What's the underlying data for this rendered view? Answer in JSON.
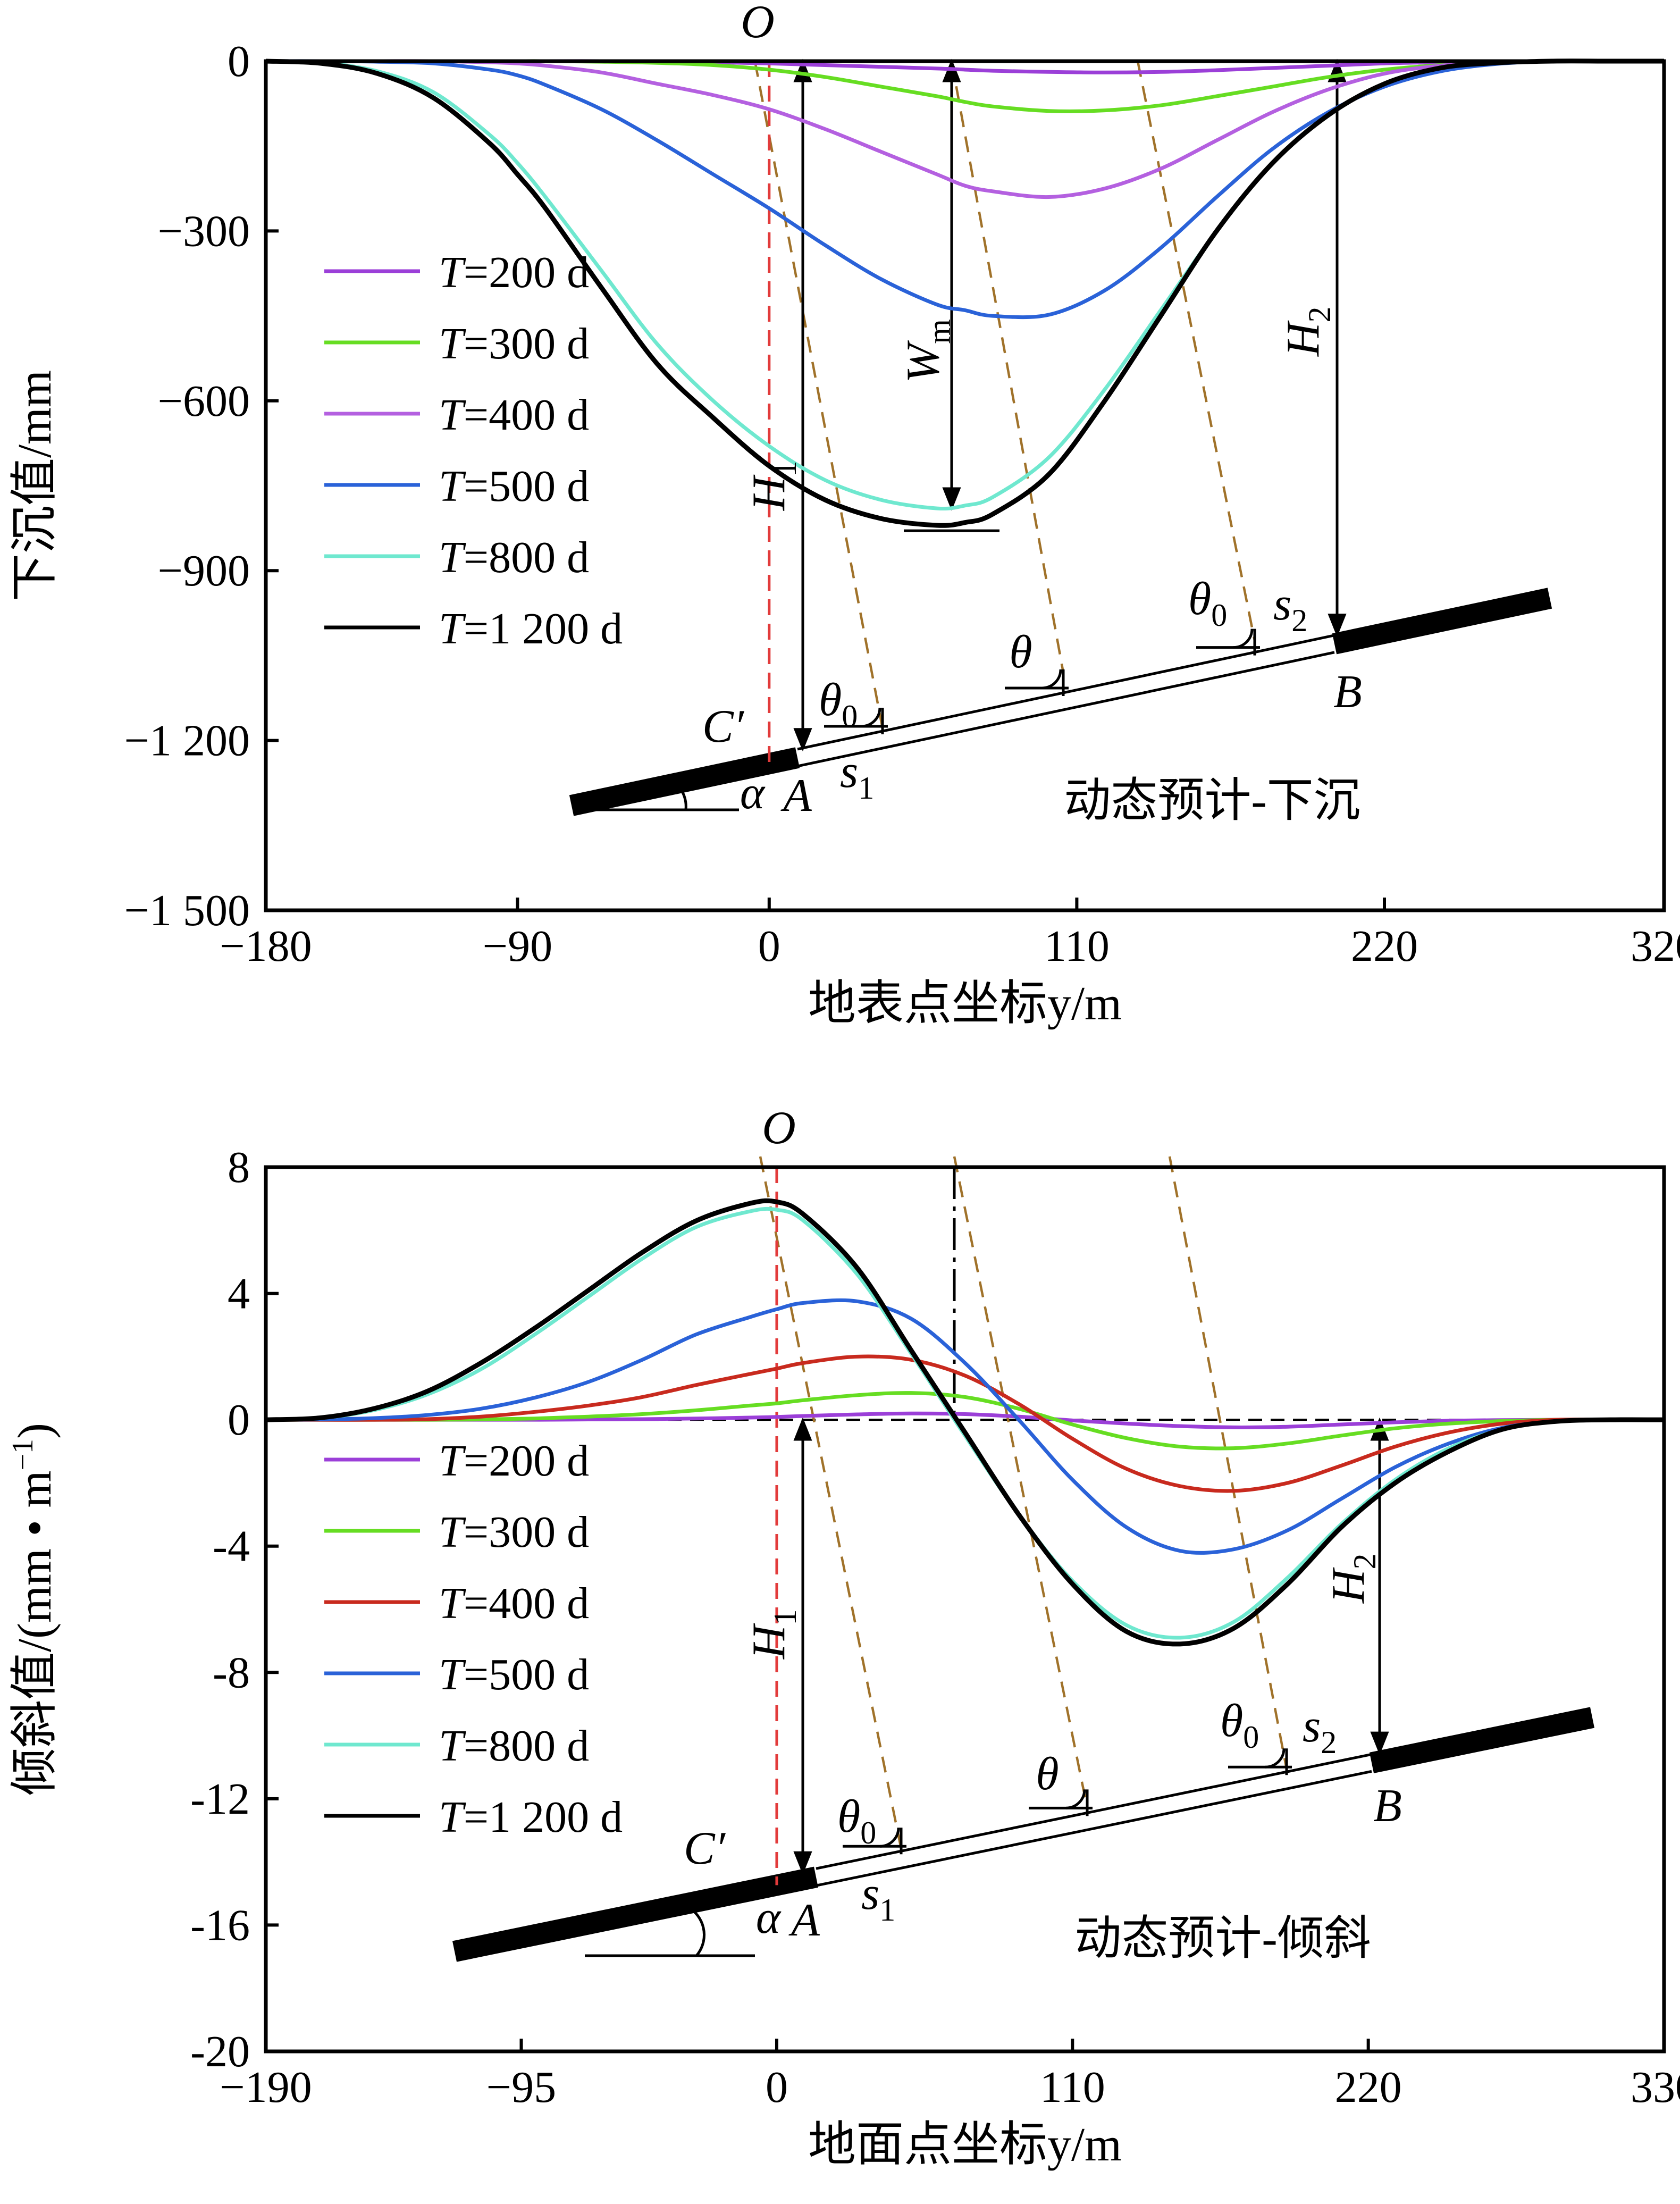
{
  "chart_data": [
    {
      "type": "line",
      "caption": "动态预计-下沉",
      "xlabel": "地表点坐标y/m",
      "ylabel": "下沉值/mm",
      "xlim": [
        -180,
        320
      ],
      "ylim": [
        -1500,
        0
      ],
      "xticks": [
        "−180",
        "−90",
        "0",
        "110",
        "220",
        "320"
      ],
      "xtick_values": [
        -180,
        -90,
        0,
        110,
        220,
        320
      ],
      "yticks": [
        "0",
        "−300",
        "−600",
        "−900",
        "−1 200",
        "−1 500"
      ],
      "ytick_values": [
        0,
        -300,
        -600,
        -900,
        -1200,
        -1500
      ],
      "annotations": [
        "O",
        "C′",
        "A",
        "B",
        "α",
        "θ",
        "θ0",
        "θ0",
        "s1",
        "s2",
        "H1",
        "H2",
        "Wm"
      ],
      "x": [
        -180,
        -160,
        -140,
        -120,
        -100,
        -90,
        -80,
        -60,
        -40,
        -20,
        0,
        20,
        40,
        60,
        70,
        80,
        100,
        120,
        140,
        160,
        180,
        200,
        220,
        240,
        260,
        280,
        300,
        320
      ],
      "series": [
        {
          "name": "T=200 d",
          "color": "#9b3fd8",
          "values": [
            0,
            0,
            0,
            0,
            0,
            0,
            0,
            0,
            -1,
            -2,
            -4,
            -7,
            -10,
            -13,
            -15,
            -17,
            -19,
            -20,
            -19,
            -16,
            -12,
            -8,
            -4,
            -2,
            -1,
            0,
            0,
            0
          ]
        },
        {
          "name": "T=300 d",
          "color": "#66dd22",
          "values": [
            0,
            0,
            0,
            0,
            0,
            0,
            0,
            -1,
            -3,
            -7,
            -15,
            -28,
            -45,
            -62,
            -72,
            -80,
            -88,
            -87,
            -78,
            -62,
            -45,
            -28,
            -15,
            -7,
            -2,
            0,
            0,
            0
          ]
        },
        {
          "name": "T=400 d",
          "color": "#b460e0",
          "values": [
            0,
            0,
            0,
            0,
            -2,
            -4,
            -8,
            -20,
            -40,
            -60,
            -85,
            -120,
            -160,
            -200,
            -220,
            -230,
            -240,
            -225,
            -190,
            -140,
            -90,
            -50,
            -22,
            -8,
            -2,
            0,
            0,
            0
          ]
        },
        {
          "name": "T=500 d",
          "color": "#2a62d8",
          "values": [
            0,
            0,
            -1,
            -4,
            -15,
            -25,
            -42,
            -85,
            -140,
            -200,
            -260,
            -325,
            -385,
            -430,
            -440,
            -450,
            -448,
            -405,
            -330,
            -240,
            -155,
            -90,
            -45,
            -18,
            -5,
            0,
            0,
            0
          ]
        },
        {
          "name": "T=800 d",
          "color": "#6fe8cf",
          "values": [
            0,
            -3,
            -18,
            -55,
            -130,
            -180,
            -240,
            -370,
            -500,
            -600,
            -680,
            -740,
            -775,
            -790,
            -785,
            -770,
            -700,
            -580,
            -440,
            -300,
            -180,
            -95,
            -40,
            -12,
            -3,
            0,
            0,
            0
          ]
        },
        {
          "name": "T=1 200 d",
          "color": "#000000",
          "values": [
            0,
            -4,
            -22,
            -65,
            -145,
            -200,
            -260,
            -400,
            -535,
            -630,
            -715,
            -775,
            -808,
            -820,
            -815,
            -800,
            -730,
            -600,
            -450,
            -300,
            -180,
            -95,
            -40,
            -12,
            -3,
            0,
            0,
            0
          ]
        }
      ]
    },
    {
      "type": "line",
      "caption": "动态预计-倾斜",
      "xlabel": "地面点坐标y/m",
      "ylabel": "倾斜值/(mm • m",
      "ylabel_sup": "−1",
      "ylabel_end": ")",
      "xlim": [
        -190,
        330
      ],
      "ylim": [
        -20,
        8
      ],
      "xticks": [
        "−190",
        "−95",
        "0",
        "110",
        "220",
        "330"
      ],
      "xtick_values": [
        -190,
        -95,
        0,
        110,
        220,
        330
      ],
      "yticks": [
        "8",
        "4",
        "0",
        "-4",
        "-8",
        "-12",
        "-16",
        "-20"
      ],
      "ytick_values": [
        8,
        4,
        0,
        -4,
        -8,
        -12,
        -16,
        -20
      ],
      "annotations": [
        "O",
        "C′",
        "A",
        "B",
        "α",
        "θ",
        "θ0",
        "θ0",
        "s1",
        "s2",
        "H1",
        "H2"
      ],
      "x": [
        -190,
        -170,
        -150,
        -130,
        -110,
        -90,
        -70,
        -50,
        -30,
        -10,
        0,
        10,
        30,
        50,
        70,
        90,
        110,
        130,
        150,
        170,
        190,
        210,
        230,
        250,
        270,
        290,
        310,
        330
      ],
      "series": [
        {
          "name": "T=200 d",
          "color": "#9b3fd8",
          "values": [
            0,
            0,
            0,
            0,
            0,
            0,
            0.01,
            0.02,
            0.04,
            0.07,
            0.09,
            0.12,
            0.17,
            0.2,
            0.18,
            0.1,
            -0.02,
            -0.12,
            -0.2,
            -0.24,
            -0.22,
            -0.15,
            -0.08,
            -0.03,
            -0.01,
            0,
            0,
            0
          ]
        },
        {
          "name": "T=300 d",
          "color": "#66dd22",
          "values": [
            0,
            0,
            0,
            0,
            0.01,
            0.04,
            0.1,
            0.18,
            0.3,
            0.45,
            0.52,
            0.62,
            0.78,
            0.85,
            0.72,
            0.35,
            -0.15,
            -0.58,
            -0.85,
            -0.9,
            -0.75,
            -0.5,
            -0.27,
            -0.12,
            -0.04,
            0,
            0,
            0
          ]
        },
        {
          "name": "T=400 d",
          "color": "#c82a1e",
          "values": [
            0,
            0,
            0,
            0.02,
            0.1,
            0.25,
            0.45,
            0.72,
            1.1,
            1.45,
            1.62,
            1.8,
            2.0,
            1.9,
            1.4,
            0.5,
            -0.6,
            -1.55,
            -2.1,
            -2.25,
            -2.0,
            -1.45,
            -0.85,
            -0.4,
            -0.12,
            0,
            0,
            0
          ]
        },
        {
          "name": "T=500 d",
          "color": "#2a62d8",
          "values": [
            0,
            0.01,
            0.05,
            0.15,
            0.35,
            0.7,
            1.2,
            1.9,
            2.7,
            3.25,
            3.5,
            3.7,
            3.75,
            3.2,
            1.8,
            0,
            -1.9,
            -3.4,
            -4.15,
            -4.1,
            -3.5,
            -2.5,
            -1.5,
            -0.75,
            -0.25,
            -0.05,
            0,
            0
          ]
        },
        {
          "name": "T=800 d",
          "color": "#6fe8cf",
          "values": [
            0,
            0.05,
            0.3,
            0.8,
            1.6,
            2.7,
            3.9,
            5.1,
            6.1,
            6.6,
            6.65,
            6.3,
            4.6,
            2.1,
            -0.5,
            -3.0,
            -5.1,
            -6.5,
            -6.9,
            -6.4,
            -5.0,
            -3.3,
            -1.9,
            -0.9,
            -0.3,
            -0.05,
            0,
            0
          ]
        },
        {
          "name": "T=1 200 d",
          "color": "#000000",
          "values": [
            0,
            0.06,
            0.35,
            0.9,
            1.8,
            2.9,
            4.1,
            5.3,
            6.3,
            6.85,
            6.9,
            6.5,
            4.8,
            2.2,
            -0.4,
            -3.0,
            -5.2,
            -6.7,
            -7.1,
            -6.6,
            -5.2,
            -3.4,
            -2.0,
            -1.0,
            -0.3,
            -0.05,
            0,
            0
          ]
        }
      ]
    }
  ]
}
